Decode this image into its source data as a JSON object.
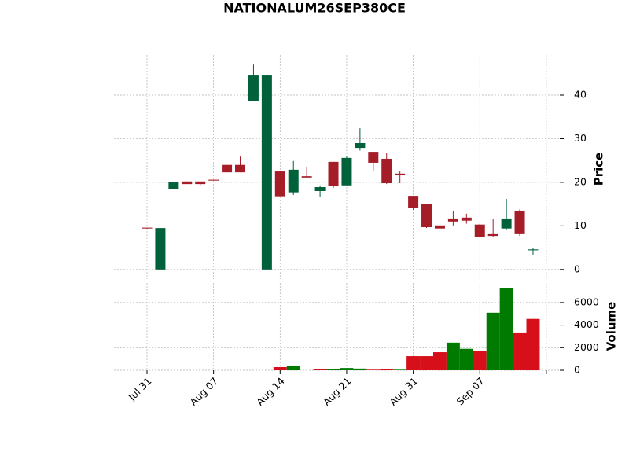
{
  "chart_data": {
    "type": "candlestick",
    "title": "NATIONALUM26SEP380CE",
    "categories": [
      "Jul 31",
      null,
      null,
      null,
      null,
      "Aug 07",
      null,
      null,
      null,
      null,
      "Aug 14",
      null,
      null,
      null,
      null,
      "Aug 21",
      null,
      null,
      null,
      null,
      "Aug 31",
      null,
      null,
      null,
      null,
      "Sep 07",
      null,
      null,
      null,
      null
    ],
    "open": [
      9.6,
      0,
      18.4,
      20.2,
      20.2,
      20.6,
      24,
      24,
      38.7,
      0,
      22.5,
      17.7,
      21.4,
      18,
      24.7,
      19.3,
      27.9,
      27,
      25.4,
      22,
      16.9,
      15,
      10.1,
      11.7,
      11.9,
      10.3,
      8.1,
      9.4,
      13.5,
      4.4
    ],
    "high": [
      9.6,
      9.5,
      20,
      20.2,
      20.2,
      20.6,
      24,
      25.9,
      47,
      44.5,
      22.5,
      24.9,
      23.6,
      19.3,
      24.7,
      26.1,
      32.4,
      27,
      26.7,
      22.5,
      16.9,
      15,
      10.1,
      13.5,
      12.8,
      10.5,
      11.5,
      16.2,
      13.8,
      5.0
    ],
    "low": [
      9.4,
      0,
      18.4,
      19.6,
      19.3,
      20.4,
      22.3,
      22.3,
      38.7,
      0,
      16.8,
      17.1,
      21.1,
      16.6,
      18.7,
      19.3,
      27.3,
      22.5,
      19.6,
      19.8,
      13.7,
      9.5,
      8.6,
      10.1,
      10.5,
      7.4,
      7.5,
      9.2,
      7.7,
      3.4
    ],
    "close": [
      9.4,
      9.5,
      20,
      19.6,
      19.6,
      20.4,
      22.3,
      22.3,
      44.5,
      44.5,
      16.8,
      22.9,
      21.1,
      18.9,
      19.1,
      25.6,
      29,
      24.5,
      19.8,
      21.6,
      14.1,
      9.7,
      9.4,
      11,
      11.2,
      7.4,
      7.7,
      11.7,
      8.1,
      4.6
    ],
    "volume": [
      0,
      0,
      0,
      0,
      0,
      0,
      0,
      0,
      0,
      0,
      280,
      420,
      0,
      70,
      100,
      200,
      150,
      50,
      100,
      50,
      1250,
      1250,
      1600,
      2450,
      1900,
      1700,
      5100,
      7250,
      3350,
      4550
    ],
    "ylabel": "Price",
    "y2label": "Volume",
    "ylim": [
      -2.2,
      49.2
    ],
    "yticks": [
      0,
      10,
      20,
      30,
      40
    ],
    "y2lim": [
      0,
      7735
    ],
    "y2ticks": [
      0,
      2000,
      4000,
      6000
    ],
    "up_color": "#00613a",
    "down_color": "#a51d27",
    "volume_up_color": "#007a00",
    "volume_down_color": "#d60f1a",
    "grid": true
  }
}
